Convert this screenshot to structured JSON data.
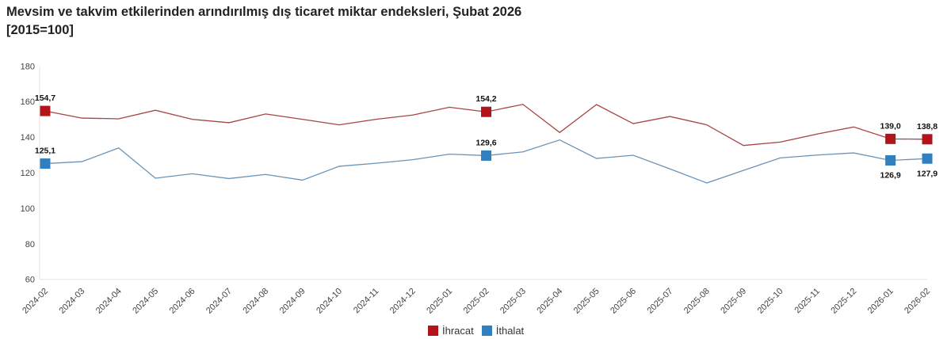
{
  "chart_data": {
    "type": "line",
    "title": "Mevsim ve takvim etkilerinden arındırılmış dış ticaret miktar endeksleri, Şubat 2026",
    "subtitle": "[2015=100]",
    "xlabel": "",
    "ylabel": "",
    "ylim": [
      60,
      180
    ],
    "yticks": [
      60,
      80,
      100,
      120,
      140,
      160,
      180
    ],
    "grid": false,
    "legend": "bottom",
    "categories": [
      "2024-02",
      "2024-03",
      "2024-04",
      "2024-05",
      "2024-06",
      "2024-07",
      "2024-08",
      "2024-09",
      "2024-10",
      "2024-11",
      "2024-12",
      "2025-01",
      "2025-02",
      "2025-03",
      "2025-04",
      "2025-05",
      "2025-06",
      "2025-07",
      "2025-08",
      "2025-09",
      "2025-10",
      "2025-11",
      "2025-12",
      "2026-01",
      "2026-02"
    ],
    "series": [
      {
        "name": "İhracat",
        "color": "#b3141c",
        "line_color": "#a84444",
        "values": [
          154.7,
          150.7,
          150.3,
          155.1,
          150.0,
          148.1,
          153.0,
          150.0,
          146.9,
          150.0,
          152.4,
          156.8,
          154.2,
          158.4,
          142.6,
          158.3,
          147.6,
          151.6,
          146.9,
          135.3,
          137.2,
          141.7,
          145.7,
          139.0,
          138.8
        ],
        "annotations": [
          {
            "category": "2024-02",
            "label": "154,7",
            "position": "above"
          },
          {
            "category": "2025-02",
            "label": "154,2",
            "position": "above"
          },
          {
            "category": "2026-01",
            "label": "139,0",
            "position": "above"
          },
          {
            "category": "2026-02",
            "label": "138,8",
            "position": "above"
          }
        ]
      },
      {
        "name": "İthalat",
        "color": "#2f7fc1",
        "line_color": "#6a93b8",
        "values": [
          125.1,
          126.2,
          133.9,
          116.9,
          119.4,
          116.7,
          119.0,
          115.8,
          123.6,
          125.3,
          127.3,
          130.4,
          129.6,
          131.7,
          138.4,
          128.0,
          129.8,
          122.1,
          114.2,
          121.3,
          128.3,
          129.9,
          131.1,
          126.9,
          127.9
        ],
        "annotations": [
          {
            "category": "2024-02",
            "label": "125,1",
            "position": "above"
          },
          {
            "category": "2025-02",
            "label": "129,6",
            "position": "above"
          },
          {
            "category": "2026-01",
            "label": "126,9",
            "position": "below"
          },
          {
            "category": "2026-02",
            "label": "127,9",
            "position": "below"
          }
        ]
      }
    ]
  }
}
